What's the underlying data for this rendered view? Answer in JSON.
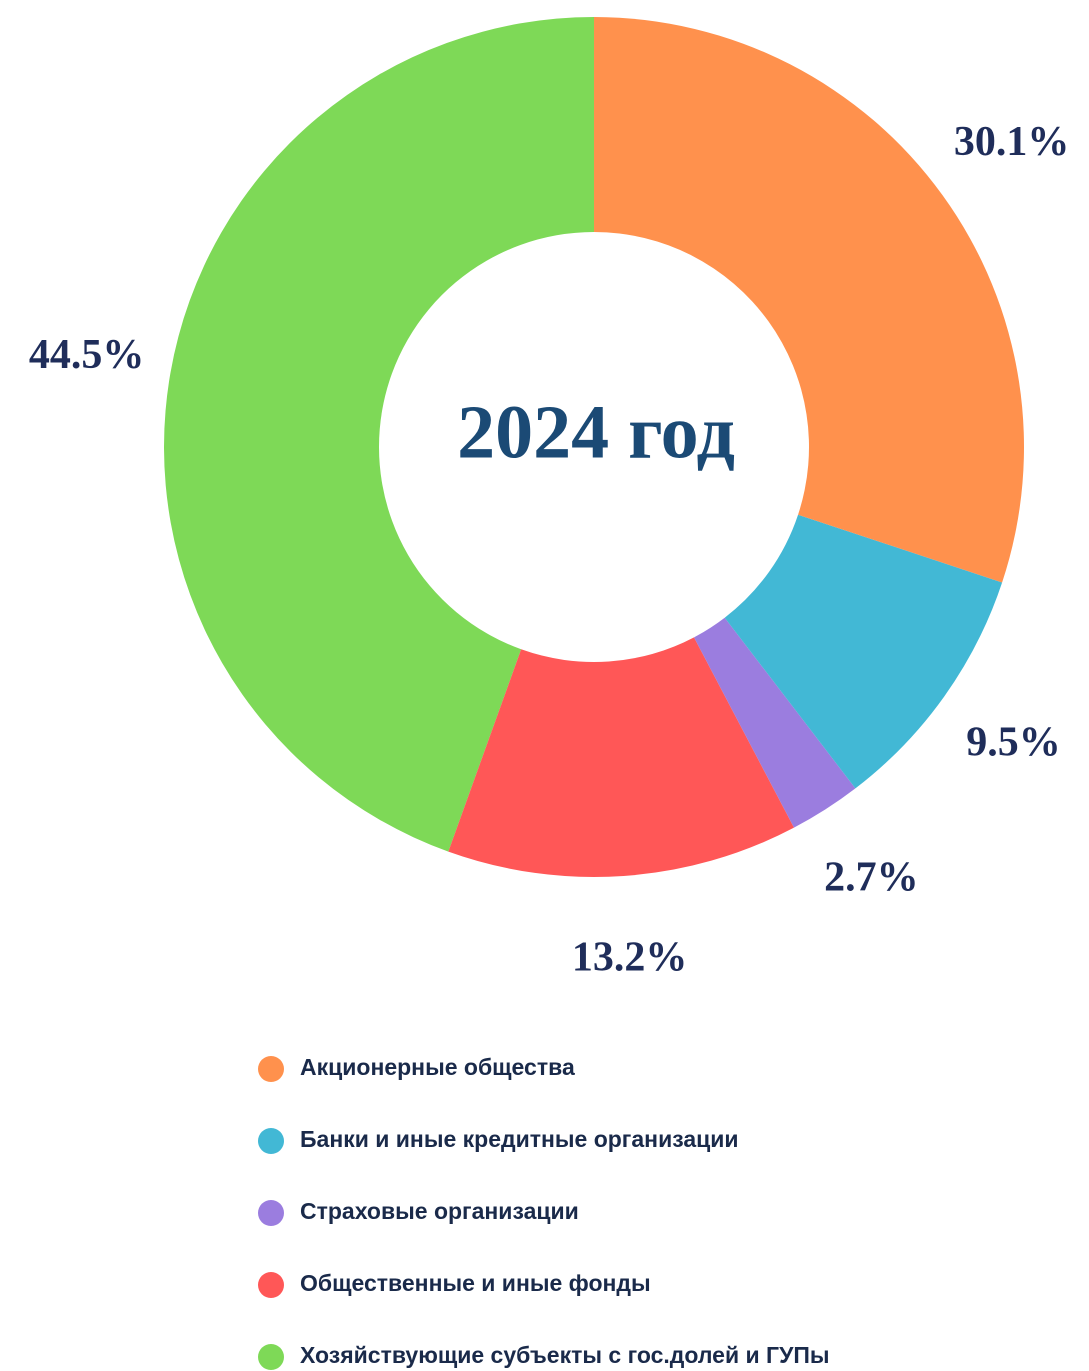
{
  "chart_data": {
    "type": "donut",
    "center_text": "2024 год",
    "categories": [
      "Акционерные общества",
      "Банки и иные кредитные организации",
      "Страховые организации",
      "Общественные и иные фонды",
      "Хозяйствующие субъекты с гос.долей и ГУПы"
    ],
    "values": [
      30.1,
      9.5,
      2.7,
      13.2,
      44.5
    ],
    "value_labels": [
      "30.1%",
      "9.5%",
      "2.7%",
      "13.2%",
      "44.5%"
    ],
    "colors": [
      "#ff914d",
      "#42b8d5",
      "#9b7ddf",
      "#ff5757",
      "#7ed957"
    ]
  }
}
